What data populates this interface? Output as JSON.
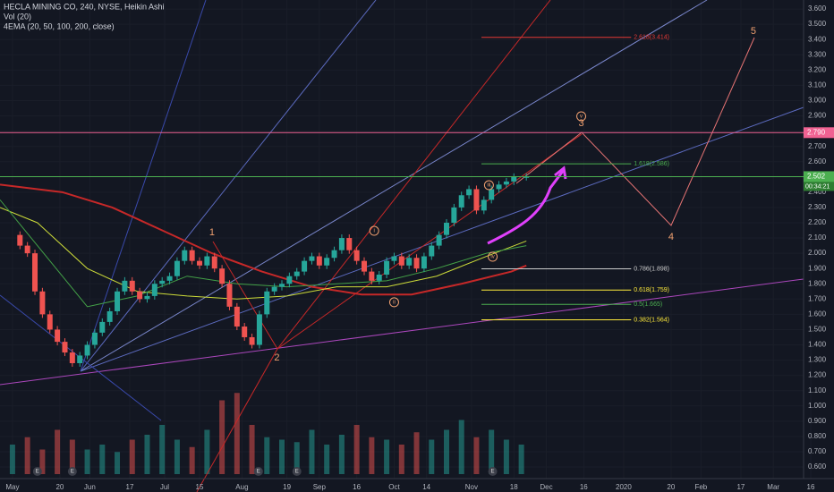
{
  "chart_data": {
    "type": "line",
    "title": "HECLA MINING CO, 240, NYSE, Heikin Ashi",
    "indicators": [
      "Vol (20)",
      "4EMA (20, 50, 100, 200, close)"
    ],
    "up_color": "#26a69a",
    "down_color": "#ef5350",
    "x": [
      0,
      3,
      6,
      9,
      12,
      15,
      18,
      21,
      24,
      27,
      30,
      33,
      36,
      39,
      42,
      45,
      48,
      51,
      54,
      57,
      60,
      63,
      66,
      69,
      72,
      75,
      78,
      81,
      84,
      87,
      90,
      93,
      96,
      99,
      102,
      105,
      108,
      111,
      114,
      117,
      120,
      123,
      126,
      129,
      132,
      135,
      138,
      141,
      144,
      147,
      150,
      153,
      156,
      159,
      162,
      165,
      168,
      171,
      174,
      177,
      180,
      183,
      186,
      189,
      192,
      195,
      198,
      201,
      206
    ],
    "values": [
      2.12,
      2.05,
      2.0,
      1.75,
      1.6,
      1.5,
      1.42,
      1.35,
      1.28,
      1.33,
      1.4,
      1.48,
      1.55,
      1.62,
      1.75,
      1.82,
      1.75,
      1.7,
      1.72,
      1.8,
      1.82,
      1.85,
      1.95,
      2.02,
      1.95,
      1.92,
      1.98,
      1.9,
      1.8,
      1.65,
      1.52,
      1.45,
      1.4,
      1.6,
      1.75,
      1.78,
      1.8,
      1.85,
      1.88,
      1.95,
      1.98,
      1.92,
      1.97,
      2.02,
      2.1,
      2.02,
      1.95,
      1.88,
      1.82,
      1.86,
      1.95,
      1.98,
      1.92,
      1.97,
      1.9,
      1.98,
      2.05,
      2.12,
      2.2,
      2.3,
      2.38,
      2.42,
      2.28,
      2.35,
      2.42,
      2.45,
      2.47,
      2.5,
      2.5
    ],
    "xlim": [
      -5,
      320
    ],
    "ylim": [
      0.524,
      3.659
    ],
    "grid": true,
    "xticks": [
      {
        "value": 0,
        "label": "May"
      },
      {
        "value": 19,
        "label": "20"
      },
      {
        "value": 31,
        "label": "Jun"
      },
      {
        "value": 47,
        "label": "17"
      },
      {
        "value": 61,
        "label": "Jul"
      },
      {
        "value": 75,
        "label": "15"
      },
      {
        "value": 92,
        "label": "Aug"
      },
      {
        "value": 110,
        "label": "19"
      },
      {
        "value": 123,
        "label": "Sep"
      },
      {
        "value": 138,
        "label": "16"
      },
      {
        "value": 153,
        "label": "Oct"
      },
      {
        "value": 166,
        "label": "14"
      },
      {
        "value": 184,
        "label": "Nov"
      },
      {
        "value": 201,
        "label": "18"
      },
      {
        "value": 214,
        "label": "Dec"
      },
      {
        "value": 229,
        "label": "16"
      },
      {
        "value": 245,
        "label": "2020"
      },
      {
        "value": 264,
        "label": "20"
      },
      {
        "value": 276,
        "label": "Feb"
      },
      {
        "value": 292,
        "label": "17"
      },
      {
        "value": 305,
        "label": "Mar"
      },
      {
        "value": 320,
        "label": "16"
      }
    ],
    "yticks": [
      {
        "value": 0.6,
        "label": "0.600"
      },
      {
        "value": 0.7,
        "label": "0.700"
      },
      {
        "value": 0.8,
        "label": "0.800"
      },
      {
        "value": 0.9,
        "label": "0.900"
      },
      {
        "value": 1.0,
        "label": "1.000"
      },
      {
        "value": 1.1,
        "label": "1.100"
      },
      {
        "value": 1.2,
        "label": "1.200"
      },
      {
        "value": 1.3,
        "label": "1.300"
      },
      {
        "value": 1.4,
        "label": "1.400"
      },
      {
        "value": 1.5,
        "label": "1.500"
      },
      {
        "value": 1.6,
        "label": "1.600"
      },
      {
        "value": 1.7,
        "label": "1.700"
      },
      {
        "value": 1.8,
        "label": "1.800"
      },
      {
        "value": 1.9,
        "label": "1.900"
      },
      {
        "value": 2.0,
        "label": "2.000"
      },
      {
        "value": 2.1,
        "label": "2.100"
      },
      {
        "value": 2.2,
        "label": "2.200"
      },
      {
        "value": 2.3,
        "label": "2.300"
      },
      {
        "value": 2.4,
        "label": "2.400"
      },
      {
        "value": 2.5,
        "label": "2.500"
      },
      {
        "value": 2.6,
        "label": "2.600"
      },
      {
        "value": 2.7,
        "label": "2.700"
      },
      {
        "value": 2.8,
        "label": "2.800"
      },
      {
        "value": 2.9,
        "label": "2.900"
      },
      {
        "value": 3.0,
        "label": "3.000"
      },
      {
        "value": 3.1,
        "label": "3.100"
      },
      {
        "value": 3.2,
        "label": "3.200"
      },
      {
        "value": 3.3,
        "label": "3.300"
      },
      {
        "value": 3.4,
        "label": "3.400"
      },
      {
        "value": 3.5,
        "label": "3.500"
      },
      {
        "value": 3.6,
        "label": "3.600"
      }
    ],
    "emas": [
      {
        "color": "#c62828",
        "x": [
          -5,
          20,
          40,
          60,
          80,
          100,
          120,
          140,
          160,
          180,
          200,
          206
        ],
        "values": [
          2.45,
          2.4,
          2.3,
          2.15,
          2.0,
          1.88,
          1.78,
          1.73,
          1.73,
          1.8,
          1.88,
          1.92
        ]
      },
      {
        "color": "#cddc39",
        "x": [
          -5,
          10,
          30,
          50,
          70,
          90,
          110,
          130,
          150,
          170,
          190,
          206
        ],
        "values": [
          2.3,
          2.2,
          1.9,
          1.75,
          1.72,
          1.7,
          1.72,
          1.78,
          1.78,
          1.85,
          1.98,
          2.08
        ]
      },
      {
        "color": "#43a047",
        "x": [
          -5,
          10,
          30,
          50,
          70,
          90,
          110,
          130,
          150,
          170,
          190,
          206
        ],
        "values": [
          2.35,
          2.05,
          1.65,
          1.72,
          1.85,
          1.8,
          1.78,
          1.8,
          1.82,
          1.9,
          2.0,
          2.05
        ]
      }
    ],
    "volume": {
      "lim": [
        0,
        40
      ],
      "x": [
        0,
        6,
        12,
        18,
        24,
        30,
        36,
        42,
        48,
        54,
        60,
        66,
        72,
        78,
        84,
        90,
        96,
        102,
        108,
        114,
        120,
        126,
        132,
        138,
        144,
        150,
        156,
        162,
        168,
        174,
        180,
        186,
        192,
        198,
        204
      ],
      "values": [
        12,
        15,
        10,
        18,
        14,
        10,
        12,
        9,
        14,
        16,
        20,
        14,
        11,
        18,
        30,
        33,
        20,
        15,
        14,
        13,
        18,
        12,
        16,
        20,
        15,
        14,
        12,
        17,
        14,
        18,
        22,
        15,
        18,
        14,
        12
      ]
    },
    "levels": [
      {
        "value": 2.79,
        "label": "2.790",
        "color": "#f06292"
      },
      {
        "value": 2.502,
        "label": "2.502",
        "color": "#4caf50"
      }
    ],
    "countdown": "00:34:21",
    "fibs": [
      {
        "value": 3.414,
        "label": "2.618(3.414)",
        "color": "#e53935",
        "x": [
          188,
          248
        ]
      },
      {
        "value": 2.586,
        "label": "1.618(2.586)",
        "color": "#4caf50",
        "x": [
          188,
          248
        ]
      },
      {
        "value": 1.898,
        "label": "0.786(1.898)",
        "color": "#cccccc",
        "x": [
          188,
          248
        ]
      },
      {
        "value": 1.759,
        "label": "0.618(1.759)",
        "color": "#ffeb3b",
        "x": [
          188,
          248
        ]
      },
      {
        "value": 1.665,
        "label": "0.5(1.665)",
        "color": "#4caf50",
        "x": [
          188,
          248
        ]
      },
      {
        "value": 1.564,
        "label": "0.382(1.564)",
        "color": "#ffeb3b",
        "x": [
          188,
          248
        ]
      }
    ],
    "waves": [
      {
        "label": "1",
        "x": 80,
        "y": 2.135
      },
      {
        "label": "2",
        "x": 106,
        "y": 1.315
      },
      {
        "label": "3",
        "x": 228,
        "y": 2.85
      },
      {
        "label": "4",
        "x": 264,
        "y": 2.106
      },
      {
        "label": "5",
        "x": 297,
        "y": 3.454
      }
    ],
    "subwaves": [
      {
        "label": "i",
        "x": 145,
        "y": 2.147
      },
      {
        "label": "ii",
        "x": 153,
        "y": 1.679
      },
      {
        "label": "iii",
        "x": 191,
        "y": 2.446
      },
      {
        "label": "iv",
        "x": 192.5,
        "y": 1.977
      },
      {
        "label": "v",
        "x": 228,
        "y": 2.897
      }
    ],
    "events": [
      {
        "label": "E",
        "x": 10
      },
      {
        "label": "E",
        "x": 24
      },
      {
        "label": "E",
        "x": 98.6
      },
      {
        "label": "E",
        "x": 114
      },
      {
        "label": "E",
        "x": 192.5
      }
    ]
  }
}
